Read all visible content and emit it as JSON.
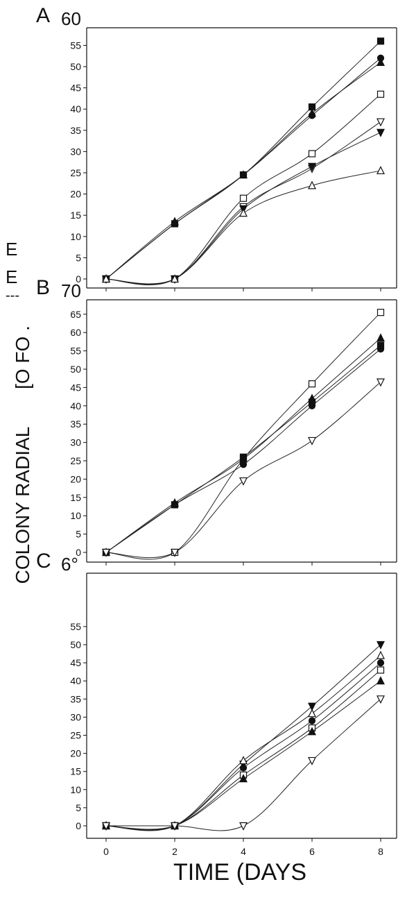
{
  "chart_data": [
    {
      "type": "line",
      "panel_label": "A",
      "top_tick_label": "60",
      "x": [
        0,
        2,
        4,
        6,
        8
      ],
      "ylim": [
        0,
        60
      ],
      "yticks": [
        0,
        5,
        10,
        15,
        20,
        25,
        30,
        35,
        40,
        45,
        50,
        55
      ],
      "series": [
        {
          "marker": "square-filled",
          "values": [
            0,
            13,
            24.5,
            40.5,
            56
          ]
        },
        {
          "marker": "circle-filled",
          "values": [
            0,
            13,
            24.5,
            38.5,
            52
          ]
        },
        {
          "marker": "triangle-filled",
          "values": [
            0,
            13.5,
            24.5,
            39,
            51
          ]
        },
        {
          "marker": "square-open",
          "values": [
            0,
            0,
            19,
            29.5,
            43.5
          ]
        },
        {
          "marker": "tridown-open",
          "values": [
            0,
            0,
            17,
            26,
            37
          ]
        },
        {
          "marker": "tridown-filled",
          "values": [
            0,
            0,
            16.5,
            26.5,
            34.5
          ]
        },
        {
          "marker": "triangle-open",
          "values": [
            0,
            0,
            15.5,
            22,
            25.5
          ]
        }
      ]
    },
    {
      "type": "line",
      "panel_label": "B",
      "top_tick_label": "70",
      "x": [
        0,
        2,
        4,
        6,
        8
      ],
      "ylim": [
        0,
        70
      ],
      "yticks": [
        0,
        5,
        10,
        15,
        20,
        25,
        30,
        35,
        40,
        45,
        50,
        55,
        60,
        65
      ],
      "series": [
        {
          "marker": "square-open",
          "values": [
            0,
            0,
            25.5,
            46,
            65.5
          ]
        },
        {
          "marker": "triangle-filled",
          "values": [
            0,
            13.5,
            25.5,
            42,
            58.5
          ]
        },
        {
          "marker": "square-filled",
          "values": [
            0,
            13,
            26,
            41,
            56.5
          ]
        },
        {
          "marker": "circle-filled",
          "values": [
            0,
            13,
            24,
            40,
            55.5
          ]
        },
        {
          "marker": "tridown-open",
          "values": [
            0,
            0,
            19.5,
            30.5,
            46.5
          ]
        }
      ]
    },
    {
      "type": "line",
      "panel_label": "C",
      "top_tick_label": "6°",
      "x": [
        0,
        2,
        4,
        6,
        8
      ],
      "xticks": [
        "0",
        "2",
        "4",
        "6",
        "8"
      ],
      "ylim": [
        0,
        60
      ],
      "yticks": [
        0,
        5,
        10,
        15,
        20,
        25,
        30,
        35,
        40,
        45,
        50,
        55
      ],
      "series": [
        {
          "marker": "tridown-filled",
          "values": [
            0,
            0,
            17,
            33,
            50
          ]
        },
        {
          "marker": "triangle-open",
          "values": [
            0,
            0,
            18,
            31,
            47
          ]
        },
        {
          "marker": "circle-filled",
          "values": [
            0,
            0,
            16,
            29,
            45
          ]
        },
        {
          "marker": "square-open",
          "values": [
            0,
            0,
            14,
            27,
            43
          ]
        },
        {
          "marker": "triangle-filled",
          "values": [
            0,
            0,
            13,
            26,
            40
          ]
        },
        {
          "marker": "tridown-open",
          "values": [
            0,
            0,
            0,
            18,
            35
          ]
        }
      ]
    }
  ],
  "ylabel": "COLONY RADIAL",
  "ylabel_garbled": "[O FO .",
  "xlabel": "TIME (DAYS",
  "stray_marks": [
    "E",
    "E",
    "---"
  ]
}
